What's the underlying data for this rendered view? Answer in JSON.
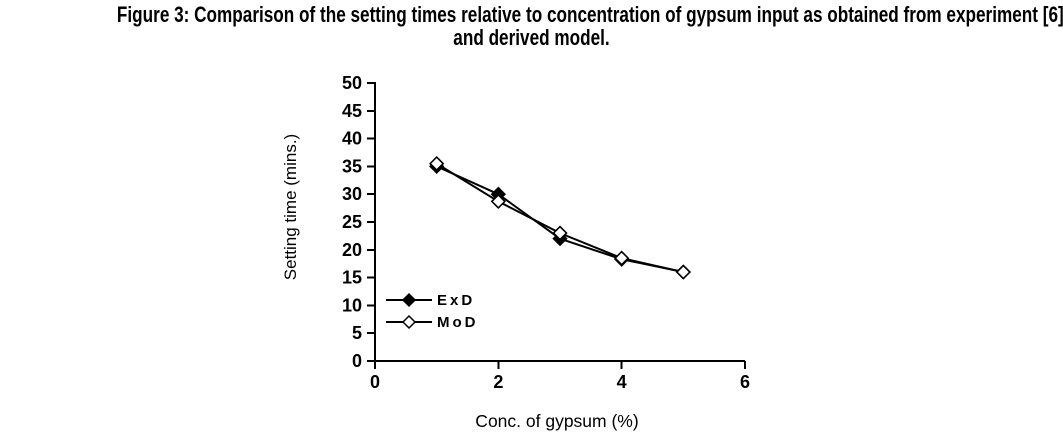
{
  "colors": {
    "foreground": "#000000",
    "background": "#ffffff"
  },
  "chart_data": {
    "type": "line",
    "title": "Figure 3: Comparison of the setting times relative to concentration of gypsum input as obtained from experiment [6] and derived model.",
    "title_lines": [
      "Figure 3: Comparison of the setting times relative to concentration of gypsum input as obtained from experiment [6]",
      "and derived model."
    ],
    "xlabel": "Conc. of gypsum (%)",
    "ylabel": "Setting time (mins.)",
    "xlim": [
      0,
      6
    ],
    "ylim": [
      0,
      50
    ],
    "xticks": [
      0,
      2,
      4,
      6
    ],
    "yticks": [
      0,
      5,
      10,
      15,
      20,
      25,
      30,
      35,
      40,
      45,
      50
    ],
    "grid": false,
    "legend_position": "inside-lower-left",
    "x": [
      1,
      2,
      3,
      4,
      5
    ],
    "series": [
      {
        "name": "ExD",
        "marker": "diamond-filled",
        "color": "#000000",
        "values": [
          35,
          30,
          22,
          18.3,
          16
        ]
      },
      {
        "name": "MoD",
        "marker": "diamond-open",
        "color": "#000000",
        "values": [
          35.5,
          28.7,
          23,
          18.5,
          16
        ]
      }
    ]
  }
}
